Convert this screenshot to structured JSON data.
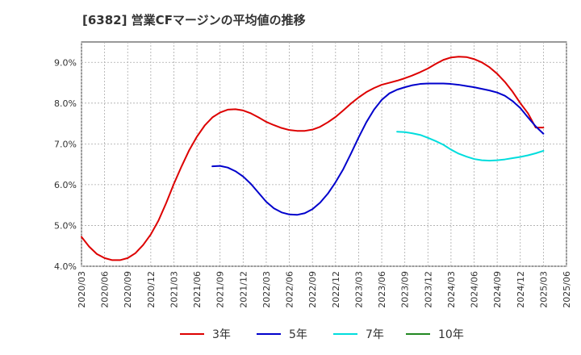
{
  "chart_data": {
    "type": "line",
    "title": "[6382]  営業CFマージンの平均値の推移",
    "xlabel": "",
    "ylabel": "",
    "ylim": [
      4.0,
      9.5
    ],
    "yticks": [
      "4.0%",
      "5.0%",
      "6.0%",
      "7.0%",
      "8.0%",
      "9.0%"
    ],
    "yticks_values": [
      4.0,
      5.0,
      6.0,
      7.0,
      8.0,
      9.0
    ],
    "xticks": [
      "2020/03",
      "2020/06",
      "2020/09",
      "2020/12",
      "2021/03",
      "2021/06",
      "2021/09",
      "2021/12",
      "2022/03",
      "2022/06",
      "2022/09",
      "2022/12",
      "2023/03",
      "2023/06",
      "2023/09",
      "2023/12",
      "2024/03",
      "2024/06",
      "2024/09",
      "2024/12",
      "2025/03",
      "2025/06"
    ],
    "grid": true,
    "legend_position": "bottom",
    "series": [
      {
        "name": "3年",
        "color": "#dd0000",
        "x": [
          "2020/03",
          "2020/04",
          "2020/05",
          "2020/06",
          "2020/07",
          "2020/08",
          "2020/09",
          "2020/10",
          "2020/11",
          "2020/12",
          "2021/01",
          "2021/02",
          "2021/03",
          "2021/04",
          "2021/05",
          "2021/06",
          "2021/07",
          "2021/08",
          "2021/09",
          "2021/10",
          "2021/11",
          "2021/12",
          "2022/01",
          "2022/02",
          "2022/03",
          "2022/04",
          "2022/05",
          "2022/06",
          "2022/07",
          "2022/08",
          "2022/09",
          "2022/10",
          "2022/11",
          "2022/12",
          "2023/01",
          "2023/02",
          "2023/03",
          "2023/04",
          "2023/05",
          "2023/06",
          "2023/07",
          "2023/08",
          "2023/09",
          "2023/10",
          "2023/11",
          "2023/12",
          "2024/01",
          "2024/02",
          "2024/03",
          "2024/04",
          "2024/05",
          "2024/06",
          "2024/07",
          "2024/08",
          "2024/09",
          "2024/10",
          "2024/11",
          "2024/12",
          "2025/01",
          "2025/02",
          "2025/03"
        ],
        "values": [
          4.72,
          4.48,
          4.3,
          4.2,
          4.15,
          4.15,
          4.2,
          4.32,
          4.52,
          4.78,
          5.12,
          5.55,
          6.02,
          6.45,
          6.85,
          7.18,
          7.45,
          7.65,
          7.77,
          7.84,
          7.85,
          7.82,
          7.75,
          7.65,
          7.54,
          7.46,
          7.39,
          7.34,
          7.32,
          7.32,
          7.35,
          7.42,
          7.53,
          7.66,
          7.82,
          7.99,
          8.14,
          8.27,
          8.37,
          8.45,
          8.5,
          8.55,
          8.61,
          8.68,
          8.76,
          8.85,
          8.96,
          9.06,
          9.12,
          9.14,
          9.13,
          9.08,
          9.0,
          8.88,
          8.72,
          8.52,
          8.28,
          8.0,
          7.75,
          7.4,
          7.4
        ]
      },
      {
        "name": "5年",
        "color": "#0000cc",
        "x": [
          "2021/08",
          "2021/09",
          "2021/10",
          "2021/11",
          "2021/12",
          "2022/01",
          "2022/02",
          "2022/03",
          "2022/04",
          "2022/05",
          "2022/06",
          "2022/07",
          "2022/08",
          "2022/09",
          "2022/10",
          "2022/11",
          "2022/12",
          "2023/01",
          "2023/02",
          "2023/03",
          "2023/04",
          "2023/05",
          "2023/06",
          "2023/07",
          "2023/08",
          "2023/09",
          "2023/10",
          "2023/11",
          "2023/12",
          "2024/01",
          "2024/02",
          "2024/03",
          "2024/04",
          "2024/05",
          "2024/06",
          "2024/07",
          "2024/08",
          "2024/09",
          "2024/10",
          "2024/11",
          "2024/12",
          "2025/01",
          "2025/02",
          "2025/03"
        ],
        "values": [
          6.45,
          6.46,
          6.42,
          6.33,
          6.2,
          6.02,
          5.8,
          5.58,
          5.42,
          5.32,
          5.27,
          5.26,
          5.3,
          5.4,
          5.56,
          5.78,
          6.06,
          6.38,
          6.76,
          7.16,
          7.53,
          7.84,
          8.08,
          8.24,
          8.33,
          8.39,
          8.44,
          8.47,
          8.48,
          8.48,
          8.48,
          8.47,
          8.45,
          8.42,
          8.39,
          8.35,
          8.31,
          8.26,
          8.18,
          8.05,
          7.88,
          7.65,
          7.43,
          7.25
        ]
      },
      {
        "name": "7年",
        "color": "#00dddd",
        "x": [
          "2023/08",
          "2023/09",
          "2023/10",
          "2023/11",
          "2023/12",
          "2024/01",
          "2024/02",
          "2024/03",
          "2024/04",
          "2024/05",
          "2024/06",
          "2024/07",
          "2024/08",
          "2024/09",
          "2024/10",
          "2024/11",
          "2024/12",
          "2025/01",
          "2025/02",
          "2025/03"
        ],
        "values": [
          7.3,
          7.29,
          7.26,
          7.22,
          7.15,
          7.07,
          6.98,
          6.86,
          6.76,
          6.69,
          6.63,
          6.6,
          6.59,
          6.6,
          6.62,
          6.65,
          6.68,
          6.72,
          6.77,
          6.83
        ]
      },
      {
        "name": "10年",
        "color": "#228822",
        "x": [],
        "values": []
      }
    ]
  }
}
